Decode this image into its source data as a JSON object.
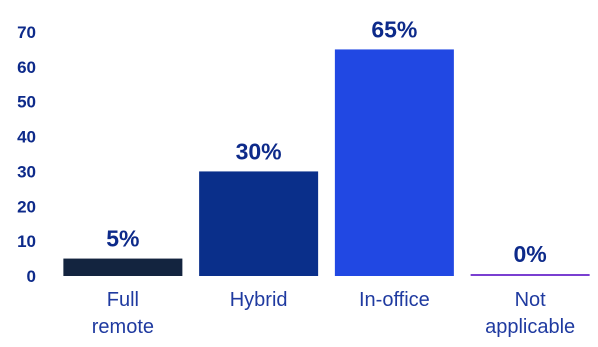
{
  "chart_data": {
    "type": "bar",
    "categories": [
      [
        "Full",
        "remote"
      ],
      [
        "Hybrid"
      ],
      [
        "In-office"
      ],
      [
        "Not",
        "applicable"
      ]
    ],
    "values": [
      5,
      30,
      65,
      0
    ],
    "data_labels": [
      "5%",
      "30%",
      "65%",
      "0%"
    ],
    "bar_colors": [
      "#13243f",
      "#0a2f8a",
      "#2148e3",
      "#7a3fd1"
    ],
    "ylim": [
      0,
      70
    ],
    "yticks": [
      0,
      10,
      20,
      30,
      40,
      50,
      60,
      70
    ],
    "grid": false,
    "legend": "none",
    "title": "",
    "xlabel": "",
    "ylabel": ""
  }
}
